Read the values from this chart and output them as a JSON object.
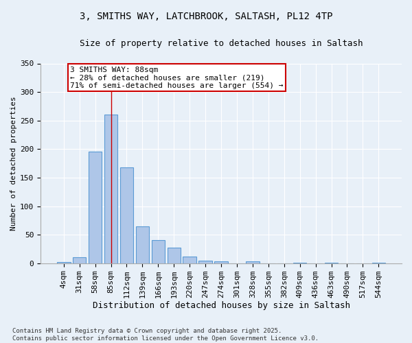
{
  "title_line1": "3, SMITHS WAY, LATCHBROOK, SALTASH, PL12 4TP",
  "title_line2": "Size of property relative to detached houses in Saltash",
  "xlabel": "Distribution of detached houses by size in Saltash",
  "ylabel": "Number of detached properties",
  "bar_labels": [
    "4sqm",
    "31sqm",
    "58sqm",
    "85sqm",
    "112sqm",
    "139sqm",
    "166sqm",
    "193sqm",
    "220sqm",
    "247sqm",
    "274sqm",
    "301sqm",
    "328sqm",
    "355sqm",
    "382sqm",
    "409sqm",
    "436sqm",
    "463sqm",
    "490sqm",
    "517sqm",
    "544sqm"
  ],
  "bar_values": [
    2,
    10,
    195,
    261,
    168,
    65,
    40,
    27,
    12,
    5,
    3,
    0,
    3,
    0,
    0,
    1,
    0,
    1,
    0,
    0,
    1
  ],
  "bar_color": "#aec6e8",
  "bar_edge_color": "#5b9bd5",
  "bg_color": "#e8f0f8",
  "grid_color": "#ffffff",
  "annotation_text": "3 SMITHS WAY: 88sqm\n← 28% of detached houses are smaller (219)\n71% of semi-detached houses are larger (554) →",
  "annotation_box_color": "#cc0000",
  "marker_bar_index": 3,
  "marker_line_color": "#cc0000",
  "ylim": [
    0,
    350
  ],
  "yticks": [
    0,
    50,
    100,
    150,
    200,
    250,
    300,
    350
  ],
  "footnote": "Contains HM Land Registry data © Crown copyright and database right 2025.\nContains public sector information licensed under the Open Government Licence v3.0.",
  "title_fontsize": 10,
  "subtitle_fontsize": 9,
  "ylabel_fontsize": 8,
  "xlabel_fontsize": 9,
  "tick_fontsize": 8,
  "ann_fontsize": 8
}
